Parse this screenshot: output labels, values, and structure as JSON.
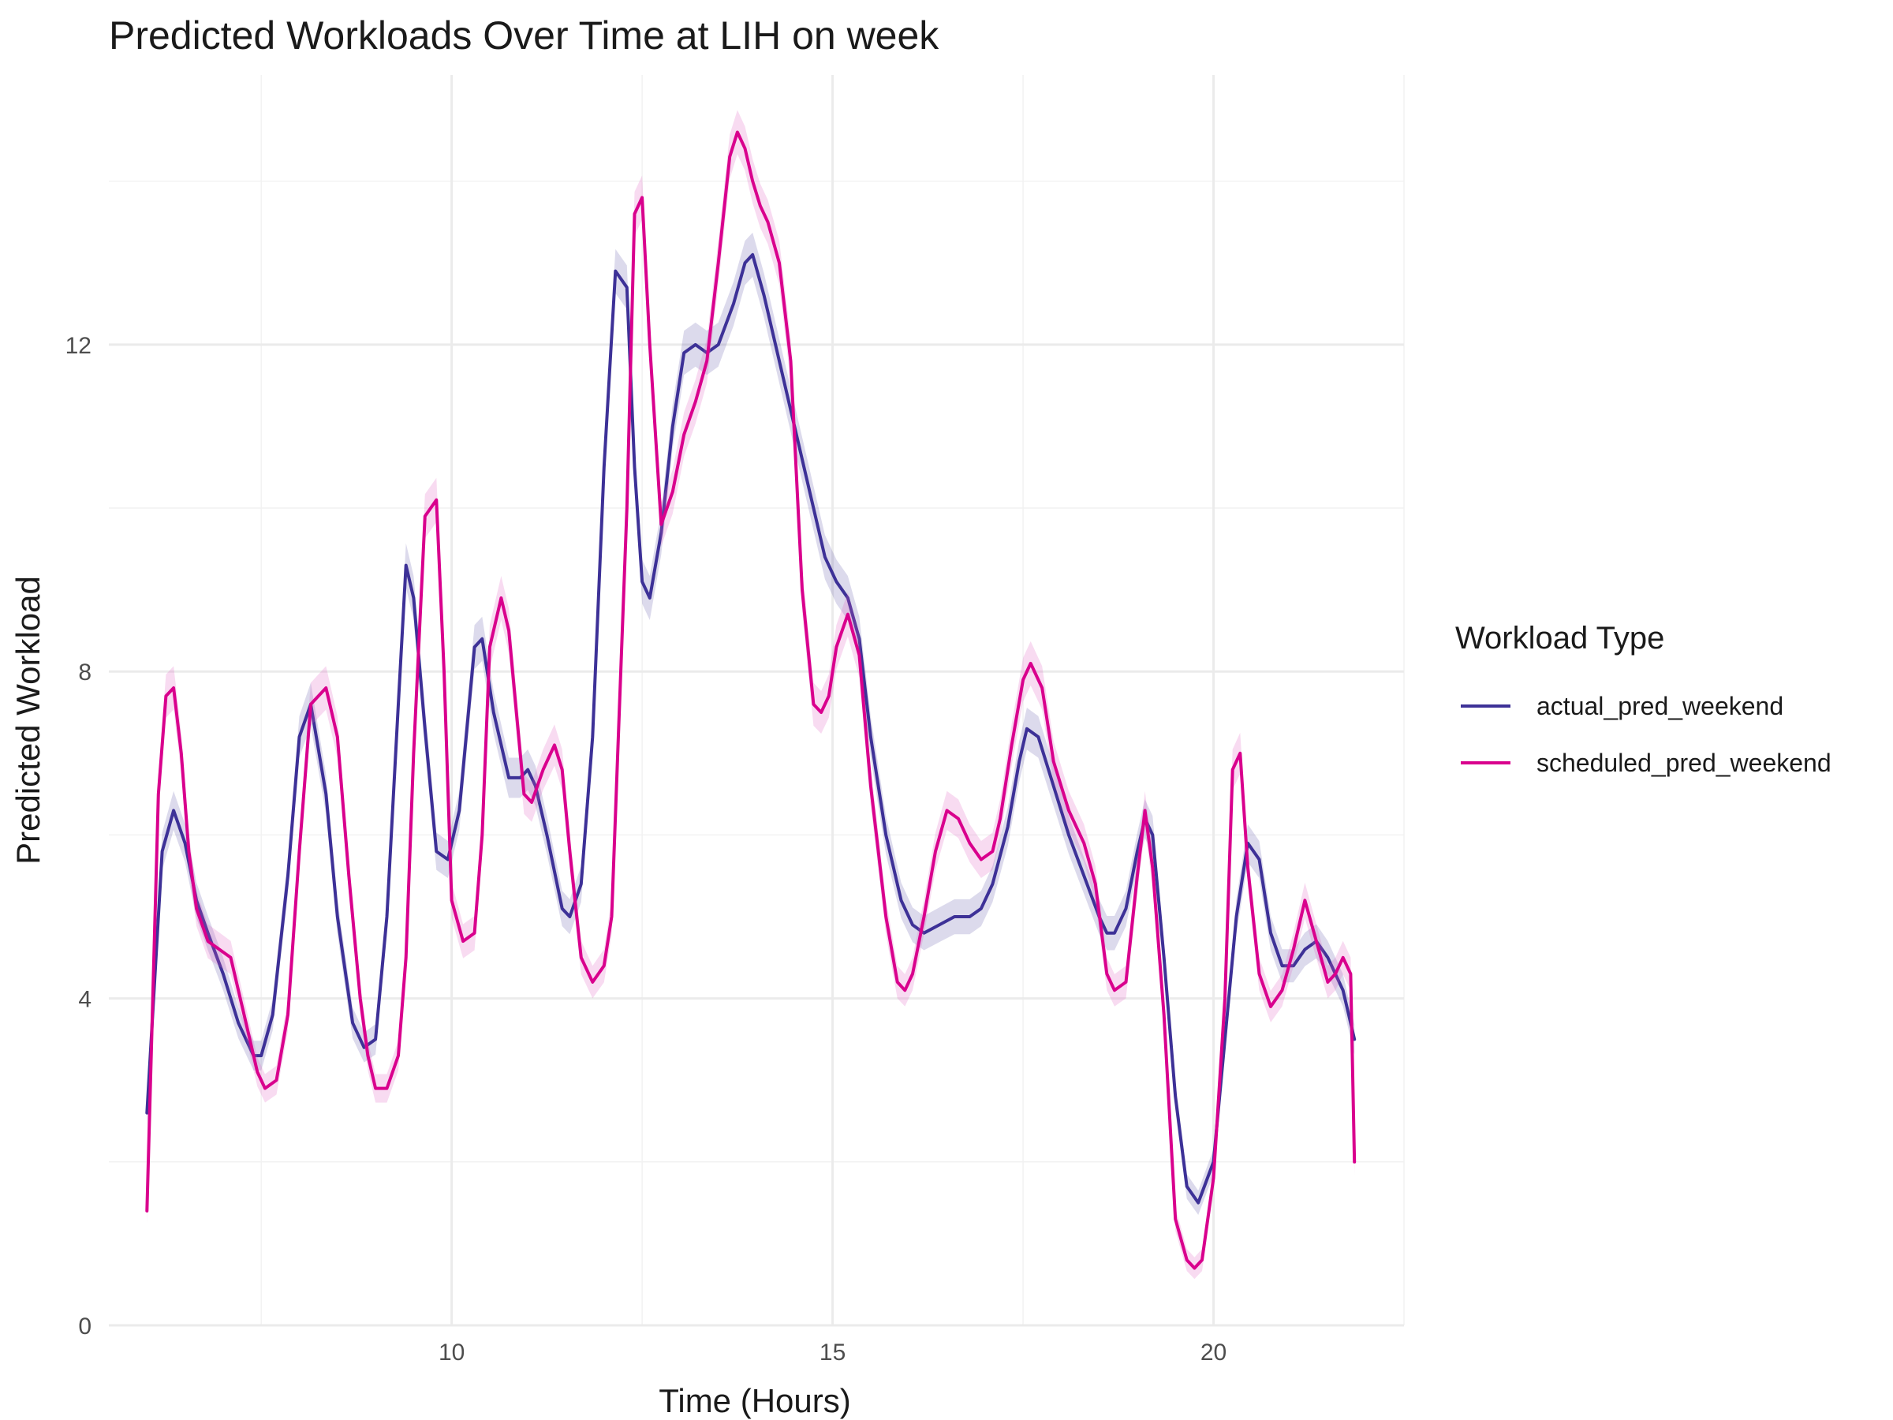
{
  "chart_data": {
    "type": "line",
    "title": "Predicted Workloads Over Time at LIH on week",
    "xlabel": "Time (Hours)",
    "ylabel": "Predicted Workload",
    "xlim": [
      5.5,
      22.5
    ],
    "ylim": [
      0,
      15.3
    ],
    "x_ticks": [
      10,
      15,
      20
    ],
    "y_ticks": [
      0,
      4,
      8,
      12
    ],
    "grid": true,
    "legend": {
      "title": "Workload Type",
      "position": "right"
    },
    "series": [
      {
        "name": "actual_pred_weekend",
        "color": "#3d3197",
        "band_color": "#3d3197",
        "x": [
          6.0,
          6.2,
          6.35,
          6.5,
          6.65,
          6.8,
          7.0,
          7.2,
          7.4,
          7.5,
          7.65,
          7.85,
          8.0,
          8.15,
          8.35,
          8.5,
          8.7,
          8.85,
          9.0,
          9.15,
          9.3,
          9.4,
          9.5,
          9.65,
          9.8,
          9.95,
          10.1,
          10.3,
          10.4,
          10.55,
          10.75,
          10.9,
          11.0,
          11.1,
          11.25,
          11.45,
          11.55,
          11.7,
          11.85,
          12.0,
          12.15,
          12.3,
          12.4,
          12.5,
          12.6,
          12.75,
          12.9,
          13.05,
          13.2,
          13.35,
          13.5,
          13.7,
          13.85,
          13.95,
          14.1,
          14.3,
          14.5,
          14.75,
          14.9,
          15.05,
          15.2,
          15.35,
          15.5,
          15.7,
          15.9,
          16.05,
          16.2,
          16.4,
          16.6,
          16.8,
          16.95,
          17.1,
          17.3,
          17.45,
          17.55,
          17.7,
          17.9,
          18.1,
          18.3,
          18.5,
          18.6,
          18.7,
          18.85,
          19.0,
          19.1,
          19.2,
          19.35,
          19.5,
          19.65,
          19.8,
          20.0,
          20.15,
          20.3,
          20.45,
          20.6,
          20.75,
          20.9,
          21.05,
          21.2,
          21.35,
          21.5,
          21.7,
          21.85
        ],
        "y": [
          2.6,
          5.8,
          6.3,
          5.9,
          5.2,
          4.8,
          4.3,
          3.7,
          3.3,
          3.3,
          3.8,
          5.5,
          7.2,
          7.6,
          6.5,
          5.0,
          3.7,
          3.4,
          3.5,
          5.0,
          7.6,
          9.3,
          8.9,
          7.3,
          5.8,
          5.7,
          6.3,
          8.3,
          8.4,
          7.5,
          6.7,
          6.7,
          6.8,
          6.6,
          6.0,
          5.1,
          5.0,
          5.4,
          7.2,
          10.5,
          12.9,
          12.7,
          10.5,
          9.1,
          8.9,
          9.7,
          11.0,
          11.9,
          12.0,
          11.9,
          12.0,
          12.5,
          13.0,
          13.1,
          12.6,
          11.8,
          11.0,
          10.0,
          9.4,
          9.1,
          8.9,
          8.4,
          7.2,
          6.0,
          5.2,
          4.9,
          4.8,
          4.9,
          5.0,
          5.0,
          5.1,
          5.4,
          6.1,
          6.9,
          7.3,
          7.2,
          6.6,
          6.0,
          5.5,
          5.0,
          4.8,
          4.8,
          5.1,
          5.8,
          6.2,
          6.0,
          4.5,
          2.8,
          1.7,
          1.5,
          2.0,
          3.5,
          5.0,
          5.9,
          5.7,
          4.8,
          4.4,
          4.4,
          4.6,
          4.7,
          4.5,
          4.1,
          3.5
        ]
      },
      {
        "name": "scheduled_pred_weekend",
        "color": "#d9008d",
        "band_color": "#e05cbd",
        "x": [
          6.0,
          6.15,
          6.25,
          6.35,
          6.45,
          6.55,
          6.65,
          6.8,
          6.95,
          7.1,
          7.3,
          7.45,
          7.55,
          7.7,
          7.85,
          8.0,
          8.15,
          8.35,
          8.5,
          8.65,
          8.8,
          8.9,
          9.0,
          9.15,
          9.3,
          9.4,
          9.5,
          9.65,
          9.8,
          9.9,
          10.0,
          10.15,
          10.3,
          10.4,
          10.5,
          10.65,
          10.75,
          10.85,
          10.95,
          11.05,
          11.2,
          11.35,
          11.45,
          11.55,
          11.7,
          11.85,
          12.0,
          12.1,
          12.2,
          12.3,
          12.4,
          12.5,
          12.6,
          12.75,
          12.9,
          13.05,
          13.2,
          13.35,
          13.5,
          13.65,
          13.75,
          13.85,
          13.95,
          14.05,
          14.15,
          14.3,
          14.45,
          14.6,
          14.75,
          14.85,
          14.95,
          15.05,
          15.2,
          15.35,
          15.5,
          15.7,
          15.85,
          15.95,
          16.05,
          16.2,
          16.35,
          16.5,
          16.65,
          16.8,
          16.95,
          17.1,
          17.2,
          17.35,
          17.5,
          17.6,
          17.75,
          17.9,
          18.1,
          18.3,
          18.45,
          18.6,
          18.7,
          18.85,
          19.0,
          19.1,
          19.2,
          19.35,
          19.5,
          19.65,
          19.75,
          19.85,
          20.0,
          20.15,
          20.25,
          20.35,
          20.45,
          20.6,
          20.75,
          20.9,
          21.05,
          21.2,
          21.35,
          21.5,
          21.6,
          21.7,
          21.8,
          21.85
        ],
        "y": [
          1.4,
          6.5,
          7.7,
          7.8,
          7.0,
          5.8,
          5.1,
          4.7,
          4.6,
          4.5,
          3.7,
          3.1,
          2.9,
          3.0,
          3.8,
          5.8,
          7.6,
          7.8,
          7.2,
          5.5,
          4.0,
          3.3,
          2.9,
          2.9,
          3.3,
          4.5,
          7.0,
          9.9,
          10.1,
          8.0,
          5.2,
          4.7,
          4.8,
          6.0,
          8.3,
          8.9,
          8.5,
          7.5,
          6.5,
          6.4,
          6.8,
          7.1,
          6.8,
          5.8,
          4.5,
          4.2,
          4.4,
          5.0,
          7.5,
          10.0,
          13.6,
          13.8,
          12.0,
          9.8,
          10.2,
          10.9,
          11.3,
          11.8,
          13.0,
          14.3,
          14.6,
          14.4,
          14.0,
          13.7,
          13.5,
          13.0,
          11.8,
          9.0,
          7.6,
          7.5,
          7.7,
          8.3,
          8.7,
          8.2,
          6.6,
          5.0,
          4.2,
          4.1,
          4.3,
          5.0,
          5.8,
          6.3,
          6.2,
          5.9,
          5.7,
          5.8,
          6.2,
          7.1,
          7.9,
          8.1,
          7.8,
          6.9,
          6.3,
          5.9,
          5.4,
          4.3,
          4.1,
          4.2,
          5.5,
          6.3,
          5.6,
          3.8,
          1.3,
          0.8,
          0.7,
          0.8,
          1.8,
          4.0,
          6.8,
          7.0,
          5.6,
          4.3,
          3.9,
          4.1,
          4.6,
          5.2,
          4.7,
          4.2,
          4.3,
          4.5,
          4.3,
          2.0
        ]
      }
    ]
  }
}
